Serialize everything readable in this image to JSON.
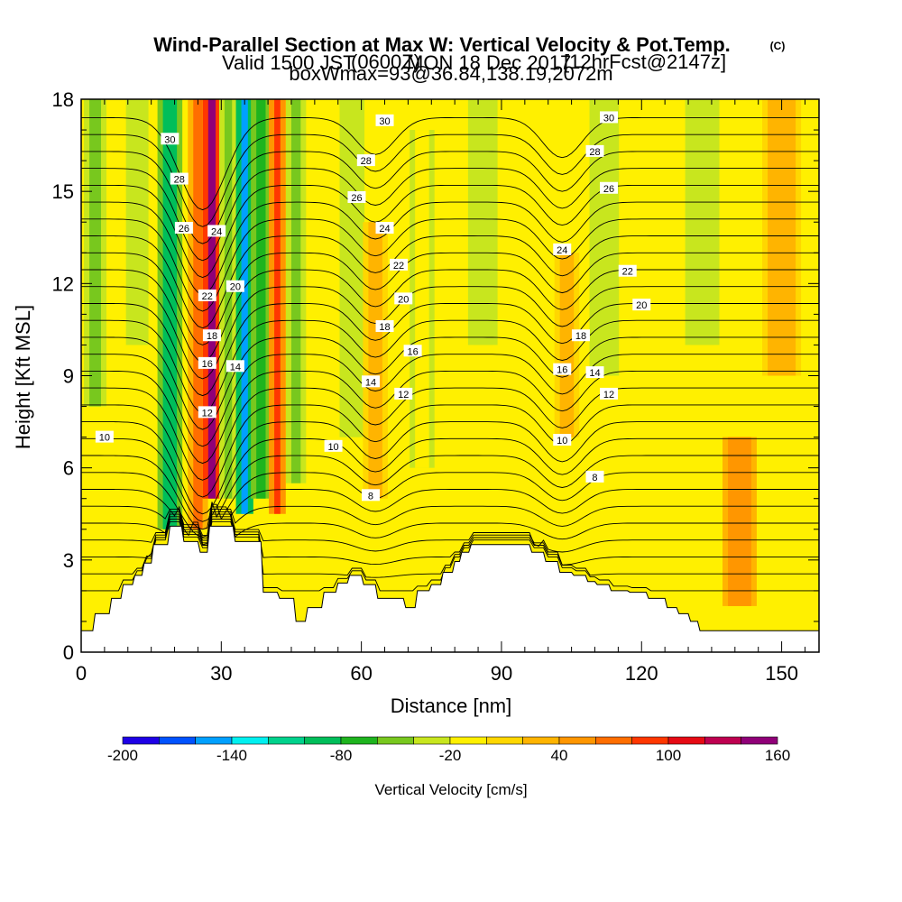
{
  "title": {
    "main": "Wind-Parallel Section at Max W: Vertical Velocity & Pot.Temp.",
    "copyright": "(C)",
    "valid_prefix": "Valid 1500 JST",
    "valid_utc": "(0600Z)",
    "valid_date": "MON 18 Dec 2017",
    "forecast": "[12hrFcst@2147z]",
    "box": "boxWmax=93@36.84,138.19,2072m"
  },
  "chart_data": {
    "type": "heatmap",
    "xlabel": "Distance [nm]",
    "ylabel": "Height [Kft MSL]",
    "xlim": [
      0,
      158
    ],
    "ylim": [
      0,
      18
    ],
    "x_ticks": [
      0,
      30,
      60,
      90,
      120,
      150
    ],
    "y_ticks": [
      0,
      3,
      6,
      9,
      12,
      15,
      18
    ],
    "colorbar": {
      "label": "Vertical Velocity [cm/s]",
      "tick_values": [
        -200,
        -140,
        -80,
        -20,
        40,
        100,
        160
      ],
      "tick_labels": [
        "-200",
        "-140",
        "-80",
        "-20",
        "40",
        "100",
        "160"
      ],
      "levels": [
        -200,
        -180,
        -160,
        -140,
        -120,
        -100,
        -80,
        -60,
        -40,
        -20,
        0,
        20,
        40,
        60,
        80,
        100,
        120,
        140,
        160
      ],
      "colors": [
        "#1e00e6",
        "#0052ff",
        "#00a0ff",
        "#00f0f0",
        "#00d28c",
        "#00be5a",
        "#1eb41e",
        "#78c81e",
        "#c8e61e",
        "#fff000",
        "#ffd700",
        "#ffb400",
        "#ff9600",
        "#ff6e00",
        "#ff3700",
        "#e60a14",
        "#be0050",
        "#900078"
      ]
    },
    "vertical_velocity_bands": [
      {
        "x": 3,
        "w": 2.5,
        "top": 18,
        "bottom": 8,
        "value": -55
      },
      {
        "x": 12,
        "w": 2.5,
        "top": 18,
        "bottom": 10,
        "value": -30
      },
      {
        "x": 19,
        "w": 3.0,
        "top": 18,
        "bottom": 4,
        "value": -90
      },
      {
        "x": 25,
        "w": 2.0,
        "top": 18,
        "bottom": 4,
        "value": 60
      },
      {
        "x": 28,
        "w": 1.6,
        "top": 18,
        "bottom": 5,
        "value": 150
      },
      {
        "x": 31.5,
        "w": 1.6,
        "top": 18,
        "bottom": 5,
        "value": -60
      },
      {
        "x": 35,
        "w": 1.4,
        "top": 18,
        "bottom": 4.5,
        "value": -150
      },
      {
        "x": 38.5,
        "w": 2.0,
        "top": 18,
        "bottom": 5,
        "value": -80
      },
      {
        "x": 42,
        "w": 1.3,
        "top": 18,
        "bottom": 4.5,
        "value": 90
      },
      {
        "x": 46,
        "w": 2.0,
        "top": 18,
        "bottom": 5.5,
        "value": -60
      },
      {
        "x": 58,
        "w": 3.0,
        "top": 18,
        "bottom": 7,
        "value": -25
      },
      {
        "x": 63,
        "w": 3.0,
        "top": 14,
        "bottom": 5,
        "value": 30
      },
      {
        "x": 73,
        "w": 3.0,
        "top": 17,
        "bottom": 6,
        "value": -20
      },
      {
        "x": 86,
        "w": 4.0,
        "top": 18,
        "bottom": 10,
        "value": -30
      },
      {
        "x": 104,
        "w": 3.0,
        "top": 13,
        "bottom": 7,
        "value": 35
      },
      {
        "x": 112,
        "w": 4.0,
        "top": 18,
        "bottom": 9,
        "value": -25
      },
      {
        "x": 133,
        "w": 5.0,
        "top": 18,
        "bottom": 10,
        "value": -35
      },
      {
        "x": 141,
        "w": 5.0,
        "top": 7,
        "bottom": 1.5,
        "value": 45
      },
      {
        "x": 150,
        "w": 6.0,
        "top": 18,
        "bottom": 9,
        "value": 20
      }
    ],
    "terrain": {
      "x": [
        0,
        2.5,
        3,
        6,
        6.5,
        8.5,
        9,
        11,
        11.5,
        13,
        13.5,
        15,
        15.5,
        18.5,
        19,
        21.5,
        22,
        25,
        25.5,
        27,
        27.5,
        32.5,
        33,
        38.5,
        39,
        42,
        42.5,
        45.5,
        46,
        48,
        48.5,
        51.5,
        52,
        54.5,
        55,
        57,
        57.5,
        60,
        60.5,
        63,
        63.5,
        69,
        69.5,
        71.5,
        72,
        74.5,
        75,
        77,
        77.5,
        79.5,
        80,
        81,
        81.5,
        83,
        83.5,
        86,
        86.5,
        96,
        96.5,
        99,
        99.5,
        102,
        102.5,
        105,
        105.5,
        108,
        108.5,
        110,
        110.5,
        113,
        113.5,
        117,
        117.5,
        121,
        121.5,
        125,
        125.5,
        127.5,
        128,
        130,
        130.5,
        132,
        132.5,
        134,
        134.5,
        136,
        136.5,
        139,
        139.5,
        158
      ],
      "z": [
        0.7,
        0.7,
        1.25,
        1.25,
        1.75,
        1.75,
        2.2,
        2.2,
        2.5,
        2.5,
        2.9,
        2.9,
        3.5,
        3.5,
        4.1,
        4.1,
        3.6,
        3.6,
        3.25,
        3.25,
        4.1,
        4.1,
        3.6,
        3.6,
        1.95,
        1.95,
        1.75,
        1.75,
        1.0,
        1.0,
        1.45,
        1.45,
        1.95,
        1.95,
        2.25,
        2.25,
        2.5,
        2.5,
        2.2,
        2.2,
        1.75,
        1.75,
        1.45,
        1.45,
        2.0,
        2.0,
        2.2,
        2.2,
        2.6,
        2.6,
        2.95,
        2.95,
        3.25,
        3.25,
        3.5,
        3.5,
        3.5,
        3.5,
        3.25,
        3.25,
        2.95,
        2.95,
        2.6,
        2.6,
        2.5,
        2.5,
        2.3,
        2.3,
        2.2,
        2.2,
        2.0,
        2.0,
        1.95,
        1.95,
        1.75,
        1.75,
        1.45,
        1.45,
        1.25,
        1.25,
        1.0,
        1.0,
        0.7,
        0.7,
        0.7,
        0.7,
        0.7,
        0.7,
        0.7,
        0.7
      ],
      "note_level_smooth_top": 18
    },
    "theta_contours": {
      "interval": 1,
      "labeled_levels": [
        {
          "level": 10,
          "labels": [
            [
              5,
              7.0
            ],
            [
              54,
              6.7
            ],
            [
              103,
              6.9
            ]
          ]
        },
        {
          "level": 8,
          "labels": [
            [
              62,
              5.1
            ],
            [
              110,
              5.7
            ]
          ]
        },
        {
          "level": 12,
          "labels": [
            [
              27,
              7.8
            ],
            [
              69,
              8.4
            ],
            [
              113,
              8.4
            ]
          ]
        },
        {
          "level": 14,
          "labels": [
            [
              33,
              9.3
            ],
            [
              62,
              8.8
            ],
            [
              110,
              9.1
            ]
          ]
        },
        {
          "level": 16,
          "labels": [
            [
              27,
              9.4
            ],
            [
              71,
              9.8
            ],
            [
              103,
              9.2
            ]
          ]
        },
        {
          "level": 18,
          "labels": [
            [
              28,
              10.3
            ],
            [
              65,
              10.6
            ],
            [
              107,
              10.3
            ]
          ]
        },
        {
          "level": 20,
          "labels": [
            [
              33,
              11.9
            ],
            [
              69,
              11.5
            ],
            [
              120,
              11.3
            ]
          ]
        },
        {
          "level": 22,
          "labels": [
            [
              27,
              11.6
            ],
            [
              68,
              12.6
            ],
            [
              117,
              12.4
            ]
          ]
        },
        {
          "level": 24,
          "labels": [
            [
              29,
              13.7
            ],
            [
              65,
              13.8
            ],
            [
              103,
              13.1
            ]
          ]
        },
        {
          "level": 26,
          "labels": [
            [
              22,
              13.8
            ],
            [
              59,
              14.8
            ],
            [
              113,
              15.1
            ]
          ]
        },
        {
          "level": 28,
          "labels": [
            [
              21,
              15.4
            ],
            [
              61,
              16.0
            ],
            [
              110,
              16.3
            ]
          ]
        },
        {
          "level": 30,
          "labels": [
            [
              19,
              16.7
            ],
            [
              65,
              17.3
            ],
            [
              113,
              17.4
            ]
          ]
        }
      ],
      "theta_params": {
        "base": 2.0,
        "slope": 1.55,
        "dip_amp": 3.0,
        "dip_x": 26,
        "dip_w": 7,
        "dip2_amp": 1.2,
        "dip2_x": 63,
        "dip2_w": 6,
        "dip3_amp": 1.3,
        "dip3_x": 103,
        "dip3_w": 6
      }
    }
  }
}
